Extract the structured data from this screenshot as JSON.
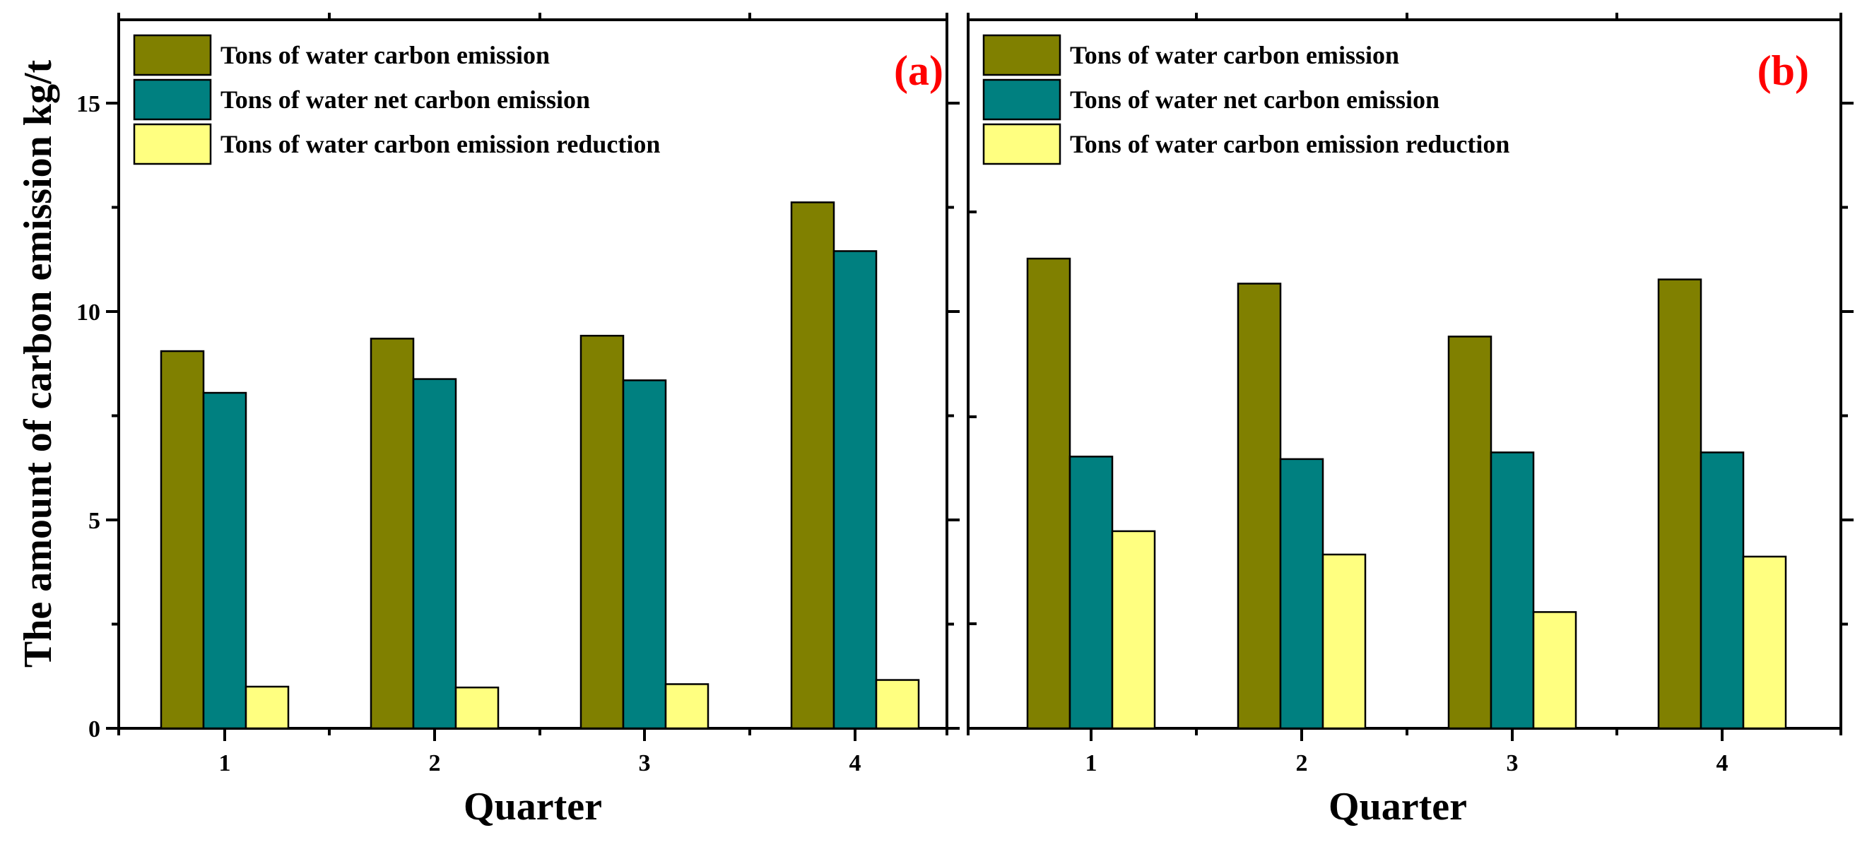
{
  "figure": {
    "y_axis_title": "The amount of carbon emission kg/t",
    "legend_entries": [
      "Tons of water carbon emission",
      "Tons of water net carbon emission",
      "Tons of water carbon emission reduction"
    ],
    "colors": [
      "#808000",
      "#008080",
      "#ffff80"
    ]
  },
  "chart_data": [
    {
      "type": "bar",
      "panel_label": "(a)",
      "xlabel": "Quarter",
      "ylabel": "The amount of carbon emission kg/t",
      "categories": [
        "1",
        "2",
        "3",
        "4"
      ],
      "ylim": [
        0,
        17
      ],
      "yticks": [
        0,
        5,
        10,
        15
      ],
      "ytick_labels": [
        "0",
        "5",
        "10",
        "15"
      ],
      "series": [
        {
          "name": "Tons of water carbon emission",
          "values": [
            9.05,
            9.35,
            9.42,
            12.62
          ]
        },
        {
          "name": "Tons of water net carbon emission",
          "values": [
            8.05,
            8.38,
            8.35,
            11.45
          ]
        },
        {
          "name": "Tons of water carbon emission reduction",
          "values": [
            1.0,
            0.98,
            1.06,
            1.16
          ]
        }
      ],
      "legend": "top-left"
    },
    {
      "type": "bar",
      "panel_label": "(b)",
      "xlabel": "Quarter",
      "ylabel": "",
      "categories": [
        "1",
        "2",
        "3",
        "4"
      ],
      "ylim": [
        0,
        17
      ],
      "yticks": [],
      "ytick_labels": [],
      "series": [
        {
          "name": "Tons of water carbon emission",
          "values": [
            11.27,
            10.67,
            9.4,
            10.77
          ]
        },
        {
          "name": "Tons of water net carbon emission",
          "values": [
            6.52,
            6.46,
            6.62,
            6.62
          ]
        },
        {
          "name": "Tons of water carbon emission reduction",
          "values": [
            4.73,
            4.17,
            2.79,
            4.12
          ]
        }
      ],
      "legend": "top-left"
    }
  ]
}
